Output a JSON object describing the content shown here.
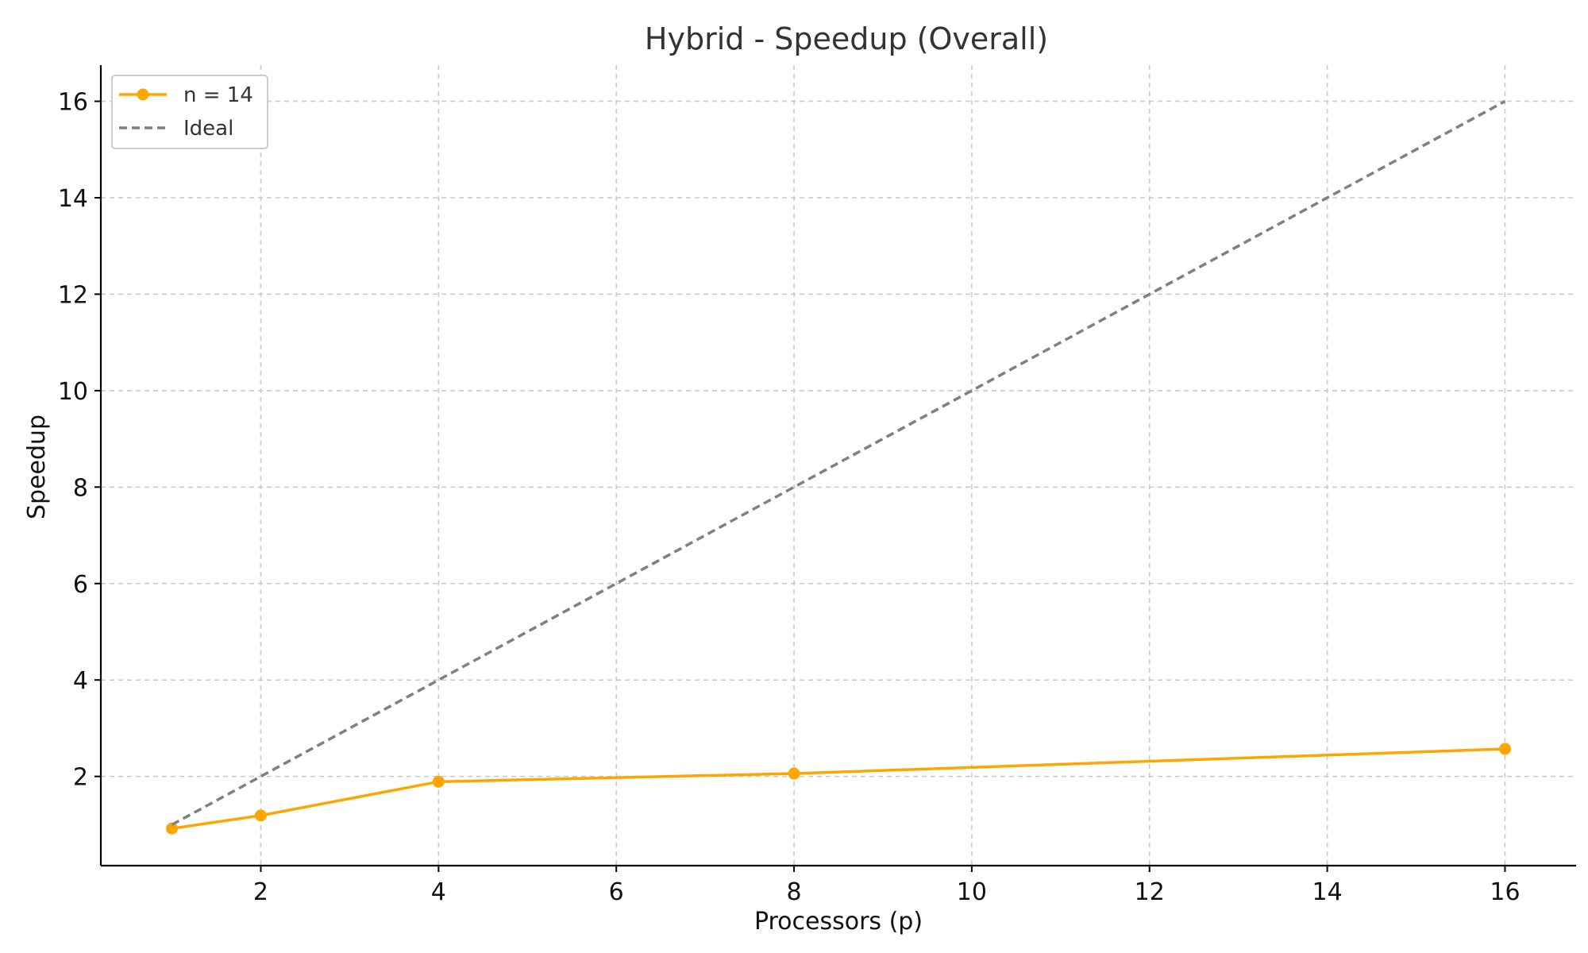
{
  "chart_data": {
    "type": "line",
    "title": "Hybrid - Speedup (Overall)",
    "xlabel": "Processors (p)",
    "ylabel": "Speedup",
    "xlim": [
      0.2,
      16.8
    ],
    "ylim": [
      0.15,
      16.75
    ],
    "xticks": [
      2,
      4,
      6,
      8,
      10,
      12,
      14,
      16
    ],
    "yticks": [
      2,
      4,
      6,
      8,
      10,
      12,
      14,
      16
    ],
    "grid": true,
    "legend_position": "top-left",
    "series": [
      {
        "name": "n = 14",
        "x": [
          1,
          2,
          4,
          8,
          16
        ],
        "y": [
          0.92,
          1.19,
          1.89,
          2.06,
          2.57
        ],
        "color": "#FFA500",
        "style": "solid",
        "marker": "circle"
      },
      {
        "name": "Ideal",
        "x": [
          1,
          16
        ],
        "y": [
          1,
          16
        ],
        "color": "#808080",
        "style": "dashed",
        "marker": "none"
      }
    ]
  }
}
